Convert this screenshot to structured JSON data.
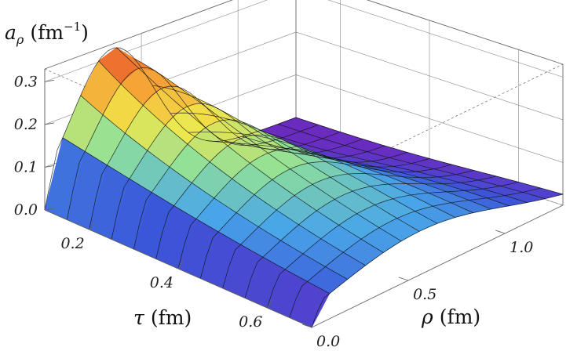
{
  "chart_data": {
    "type": "surface3d",
    "title": "",
    "x_axis": {
      "label_symbol": "τ",
      "label_unit": "(fm)",
      "ticks": [
        "0.2",
        "0.4",
        "0.6"
      ],
      "range": [
        0.1,
        0.7
      ]
    },
    "y_axis": {
      "label_symbol": "ρ",
      "label_unit": "(fm)",
      "ticks": [
        "0.0",
        "0.5",
        "1.0"
      ],
      "range": [
        0.0,
        1.3
      ]
    },
    "z_axis": {
      "label_symbol": "a",
      "label_sub": "ρ",
      "label_unit": "(fm",
      "label_unit_sup": "−1",
      "label_unit_close": ")",
      "ticks": [
        "0.0",
        "0.1",
        "0.2",
        "0.3"
      ],
      "range": [
        0.0,
        0.33
      ]
    },
    "surface": {
      "description_values_peak_tau": 0.1,
      "peak_rho": 0.35,
      "peak_value": 0.32,
      "colormap": [
        "#6a2bbf",
        "#3b56d9",
        "#49a6e8",
        "#8fe09a",
        "#f2e64a",
        "#f59a33",
        "#e0302a"
      ]
    },
    "grid": true
  }
}
